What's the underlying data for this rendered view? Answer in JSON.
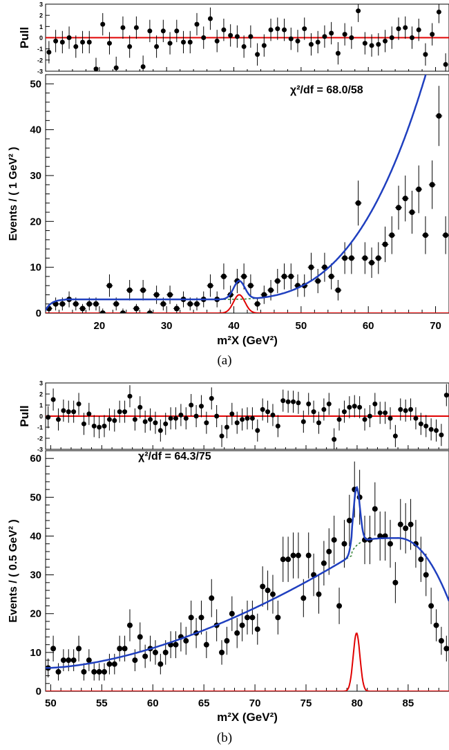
{
  "chart_data": [
    {
      "id": "a",
      "type": "scatter",
      "caption": "(a)",
      "chi2": "χ²/df = 68.0/58",
      "xlabel": "m²X (GeV²)",
      "ylabel_main": "Events / ( 1 GeV² )",
      "ylabel_pull": "Pull",
      "xlim": [
        12,
        72
      ],
      "ylim": [
        0,
        52
      ],
      "pull_ylim": [
        -3,
        3
      ],
      "xticks": [
        20,
        30,
        40,
        50,
        60,
        70
      ],
      "yticks": [
        0,
        10,
        20,
        30,
        40,
        50
      ],
      "pull_yticks": [
        -3,
        -2,
        -1,
        0,
        1,
        2,
        3
      ],
      "series": [
        {
          "role": "data",
          "x": [
            12.5,
            13.5,
            14.5,
            15.5,
            16.5,
            17.5,
            18.5,
            19.5,
            20.5,
            21.5,
            22.5,
            23.5,
            24.5,
            25.5,
            26.5,
            27.5,
            28.5,
            29.5,
            30.5,
            31.5,
            32.5,
            33.5,
            34.5,
            35.5,
            36.5,
            37.5,
            38.5,
            39.5,
            40.5,
            41.5,
            42.5,
            43.5,
            44.5,
            45.5,
            46.5,
            47.5,
            48.5,
            49.5,
            50.5,
            51.5,
            52.5,
            53.5,
            54.5,
            55.5,
            56.5,
            57.5,
            58.5,
            59.5,
            60.5,
            61.5,
            62.5,
            63.5,
            64.5,
            65.5,
            66.5,
            67.5,
            68.5,
            69.5,
            70.5,
            71.5
          ],
          "y": [
            1,
            2,
            2,
            3,
            2,
            1,
            2,
            2,
            0,
            6,
            2,
            0,
            5,
            1,
            5,
            0,
            4,
            2,
            4,
            1,
            3,
            2,
            2,
            3,
            6,
            3,
            8,
            4,
            7,
            8,
            6,
            2,
            4,
            5,
            7,
            8,
            8,
            6,
            6,
            10,
            7,
            10,
            8,
            5,
            12,
            12,
            24,
            12,
            11,
            12,
            15,
            17,
            23,
            25,
            22,
            27,
            17,
            28,
            43,
            17
          ],
          "pull": [
            -1.3,
            -0.3,
            -0.4,
            0,
            -0.8,
            -0.4,
            -0.4,
            -2.8,
            1.2,
            -0.5,
            -2.7,
            0.9,
            -0.8,
            0.9,
            -2.6,
            0.6,
            -0.8,
            0.6,
            -0.5,
            0.6,
            -0.4,
            -0.4,
            1.2,
            0,
            1.7,
            -0.3,
            0.7,
            0.2,
            0.1,
            -0.8,
            0.1,
            -1.5,
            -0.7,
            0.7,
            0.8,
            0.7,
            -0.1,
            -0.3,
            0.8,
            -0.6,
            -0.4,
            0.1,
            0.4,
            -1.4,
            0.3,
            0,
            2.4,
            -0.5,
            -0.7,
            -0.6,
            -0.3,
            0,
            0.8,
            0.9,
            0,
            0.7,
            -1.5,
            0.3,
            2.3,
            -2.4
          ]
        },
        {
          "role": "total-fit"
        },
        {
          "role": "signal"
        },
        {
          "role": "background"
        }
      ]
    },
    {
      "id": "b",
      "type": "scatter",
      "caption": "(b)",
      "chi2": "χ²/df = 64.3/75",
      "xlabel": "m²X (GeV²)",
      "ylabel_main": "Events / ( 0.5 GeV² )",
      "ylabel_pull": "Pull",
      "xlim": [
        49.5,
        89
      ],
      "ylim": [
        0,
        62
      ],
      "pull_ylim": [
        -3,
        3
      ],
      "xticks": [
        50,
        55,
        60,
        65,
        70,
        75,
        80,
        85
      ],
      "yticks": [
        0,
        10,
        20,
        30,
        40,
        50,
        60
      ],
      "pull_yticks": [
        -3,
        -2,
        -1,
        0,
        1,
        2,
        3
      ],
      "series": [
        {
          "role": "data",
          "x": [
            49.75,
            50.25,
            50.75,
            51.25,
            51.75,
            52.25,
            52.75,
            53.25,
            53.75,
            54.25,
            54.75,
            55.25,
            55.75,
            56.25,
            56.75,
            57.25,
            57.75,
            58.25,
            58.75,
            59.25,
            59.75,
            60.25,
            60.75,
            61.25,
            61.75,
            62.25,
            62.75,
            63.25,
            63.75,
            64.25,
            64.75,
            65.25,
            65.75,
            66.25,
            66.75,
            67.25,
            67.75,
            68.25,
            68.75,
            69.25,
            69.75,
            70.25,
            70.75,
            71.25,
            71.75,
            72.25,
            72.75,
            73.25,
            73.75,
            74.25,
            74.75,
            75.25,
            75.75,
            76.25,
            76.75,
            77.25,
            77.75,
            78.25,
            78.75,
            79.25,
            79.75,
            80.25,
            80.75,
            81.25,
            81.75,
            82.25,
            82.75,
            83.25,
            83.75,
            84.25,
            84.75,
            85.25,
            85.75,
            86.25,
            86.75,
            87.25,
            87.75,
            88.25,
            88.75
          ],
          "y": [
            6,
            11,
            5,
            8,
            8,
            8,
            11,
            5,
            8,
            5,
            5,
            5,
            7,
            7,
            11,
            11,
            17,
            8,
            14,
            9,
            11,
            10,
            7,
            10,
            12,
            12,
            14,
            13,
            19,
            15,
            19,
            12,
            24,
            17,
            10,
            13,
            20,
            15,
            17,
            19,
            19,
            16,
            27,
            26,
            25,
            19,
            34,
            34,
            35,
            35,
            24,
            35,
            30,
            25,
            33,
            36,
            39,
            22,
            38,
            44,
            52,
            50,
            39,
            39,
            47,
            40,
            40,
            38,
            28,
            43,
            42,
            43,
            38,
            34,
            30,
            22,
            17,
            13,
            11
          ],
          "pull": [
            -0.1,
            1.5,
            -0.3,
            0.5,
            0.4,
            0.4,
            1.1,
            -0.7,
            0.2,
            -0.9,
            -1,
            -0.9,
            -0.3,
            -0.4,
            0.4,
            0.4,
            1.8,
            -0.3,
            0.8,
            -0.5,
            -0.3,
            -0.6,
            -1.3,
            -0.7,
            -0.2,
            -0.2,
            0.1,
            -0.2,
            1,
            0,
            0.9,
            -0.6,
            1.6,
            0,
            -1.8,
            -1,
            0.2,
            -0.6,
            -0.3,
            -0.2,
            -0.2,
            -1.3,
            0.6,
            0.4,
            0.1,
            -0.9,
            1.4,
            1.3,
            1.3,
            1.2,
            -0.5,
            1.1,
            0.4,
            -0.6,
            0.6,
            1.1,
            -2.1,
            -0.3,
            0.4,
            0.8,
            0.9,
            0.8,
            -0.3,
            0,
            1.1,
            0.3,
            0.3,
            -0.2,
            -1.8,
            0.6,
            0.5,
            0.6,
            -0.2,
            -0.7,
            -0.9,
            -1.2,
            -1.3,
            -1.7,
            1.9
          ]
        },
        {
          "role": "total-fit"
        },
        {
          "role": "signal"
        },
        {
          "role": "background"
        }
      ]
    }
  ]
}
